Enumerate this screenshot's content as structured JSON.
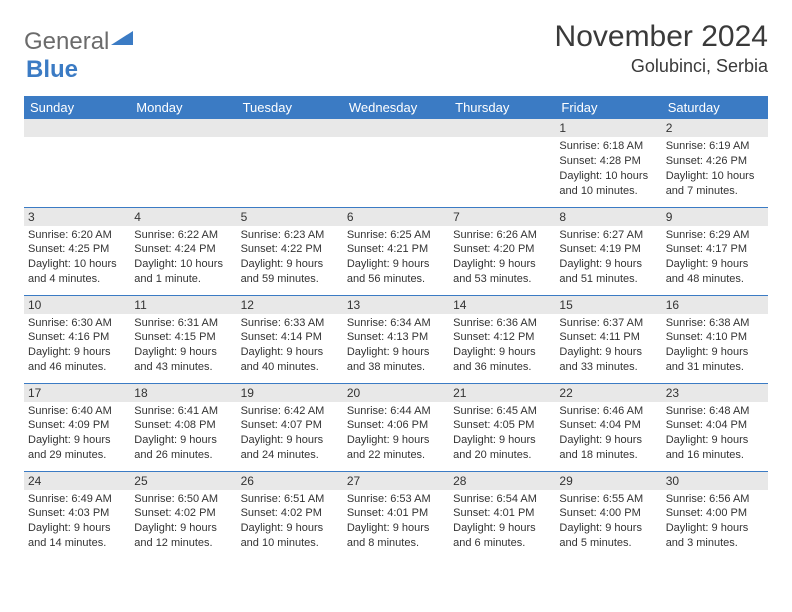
{
  "logo": {
    "part1": "General",
    "part2": "Blue"
  },
  "title": "November 2024",
  "location": "Golubinci, Serbia",
  "header_bg": "#3b7bc4",
  "daybar_bg": "#e8e8e8",
  "weekdays": [
    "Sunday",
    "Monday",
    "Tuesday",
    "Wednesday",
    "Thursday",
    "Friday",
    "Saturday"
  ],
  "weeks": [
    [
      null,
      null,
      null,
      null,
      null,
      {
        "d": "1",
        "sr": "Sunrise: 6:18 AM",
        "ss": "Sunset: 4:28 PM",
        "dl": "Daylight: 10 hours and 10 minutes."
      },
      {
        "d": "2",
        "sr": "Sunrise: 6:19 AM",
        "ss": "Sunset: 4:26 PM",
        "dl": "Daylight: 10 hours and 7 minutes."
      }
    ],
    [
      {
        "d": "3",
        "sr": "Sunrise: 6:20 AM",
        "ss": "Sunset: 4:25 PM",
        "dl": "Daylight: 10 hours and 4 minutes."
      },
      {
        "d": "4",
        "sr": "Sunrise: 6:22 AM",
        "ss": "Sunset: 4:24 PM",
        "dl": "Daylight: 10 hours and 1 minute."
      },
      {
        "d": "5",
        "sr": "Sunrise: 6:23 AM",
        "ss": "Sunset: 4:22 PM",
        "dl": "Daylight: 9 hours and 59 minutes."
      },
      {
        "d": "6",
        "sr": "Sunrise: 6:25 AM",
        "ss": "Sunset: 4:21 PM",
        "dl": "Daylight: 9 hours and 56 minutes."
      },
      {
        "d": "7",
        "sr": "Sunrise: 6:26 AM",
        "ss": "Sunset: 4:20 PM",
        "dl": "Daylight: 9 hours and 53 minutes."
      },
      {
        "d": "8",
        "sr": "Sunrise: 6:27 AM",
        "ss": "Sunset: 4:19 PM",
        "dl": "Daylight: 9 hours and 51 minutes."
      },
      {
        "d": "9",
        "sr": "Sunrise: 6:29 AM",
        "ss": "Sunset: 4:17 PM",
        "dl": "Daylight: 9 hours and 48 minutes."
      }
    ],
    [
      {
        "d": "10",
        "sr": "Sunrise: 6:30 AM",
        "ss": "Sunset: 4:16 PM",
        "dl": "Daylight: 9 hours and 46 minutes."
      },
      {
        "d": "11",
        "sr": "Sunrise: 6:31 AM",
        "ss": "Sunset: 4:15 PM",
        "dl": "Daylight: 9 hours and 43 minutes."
      },
      {
        "d": "12",
        "sr": "Sunrise: 6:33 AM",
        "ss": "Sunset: 4:14 PM",
        "dl": "Daylight: 9 hours and 40 minutes."
      },
      {
        "d": "13",
        "sr": "Sunrise: 6:34 AM",
        "ss": "Sunset: 4:13 PM",
        "dl": "Daylight: 9 hours and 38 minutes."
      },
      {
        "d": "14",
        "sr": "Sunrise: 6:36 AM",
        "ss": "Sunset: 4:12 PM",
        "dl": "Daylight: 9 hours and 36 minutes."
      },
      {
        "d": "15",
        "sr": "Sunrise: 6:37 AM",
        "ss": "Sunset: 4:11 PM",
        "dl": "Daylight: 9 hours and 33 minutes."
      },
      {
        "d": "16",
        "sr": "Sunrise: 6:38 AM",
        "ss": "Sunset: 4:10 PM",
        "dl": "Daylight: 9 hours and 31 minutes."
      }
    ],
    [
      {
        "d": "17",
        "sr": "Sunrise: 6:40 AM",
        "ss": "Sunset: 4:09 PM",
        "dl": "Daylight: 9 hours and 29 minutes."
      },
      {
        "d": "18",
        "sr": "Sunrise: 6:41 AM",
        "ss": "Sunset: 4:08 PM",
        "dl": "Daylight: 9 hours and 26 minutes."
      },
      {
        "d": "19",
        "sr": "Sunrise: 6:42 AM",
        "ss": "Sunset: 4:07 PM",
        "dl": "Daylight: 9 hours and 24 minutes."
      },
      {
        "d": "20",
        "sr": "Sunrise: 6:44 AM",
        "ss": "Sunset: 4:06 PM",
        "dl": "Daylight: 9 hours and 22 minutes."
      },
      {
        "d": "21",
        "sr": "Sunrise: 6:45 AM",
        "ss": "Sunset: 4:05 PM",
        "dl": "Daylight: 9 hours and 20 minutes."
      },
      {
        "d": "22",
        "sr": "Sunrise: 6:46 AM",
        "ss": "Sunset: 4:04 PM",
        "dl": "Daylight: 9 hours and 18 minutes."
      },
      {
        "d": "23",
        "sr": "Sunrise: 6:48 AM",
        "ss": "Sunset: 4:04 PM",
        "dl": "Daylight: 9 hours and 16 minutes."
      }
    ],
    [
      {
        "d": "24",
        "sr": "Sunrise: 6:49 AM",
        "ss": "Sunset: 4:03 PM",
        "dl": "Daylight: 9 hours and 14 minutes."
      },
      {
        "d": "25",
        "sr": "Sunrise: 6:50 AM",
        "ss": "Sunset: 4:02 PM",
        "dl": "Daylight: 9 hours and 12 minutes."
      },
      {
        "d": "26",
        "sr": "Sunrise: 6:51 AM",
        "ss": "Sunset: 4:02 PM",
        "dl": "Daylight: 9 hours and 10 minutes."
      },
      {
        "d": "27",
        "sr": "Sunrise: 6:53 AM",
        "ss": "Sunset: 4:01 PM",
        "dl": "Daylight: 9 hours and 8 minutes."
      },
      {
        "d": "28",
        "sr": "Sunrise: 6:54 AM",
        "ss": "Sunset: 4:01 PM",
        "dl": "Daylight: 9 hours and 6 minutes."
      },
      {
        "d": "29",
        "sr": "Sunrise: 6:55 AM",
        "ss": "Sunset: 4:00 PM",
        "dl": "Daylight: 9 hours and 5 minutes."
      },
      {
        "d": "30",
        "sr": "Sunrise: 6:56 AM",
        "ss": "Sunset: 4:00 PM",
        "dl": "Daylight: 9 hours and 3 minutes."
      }
    ]
  ]
}
